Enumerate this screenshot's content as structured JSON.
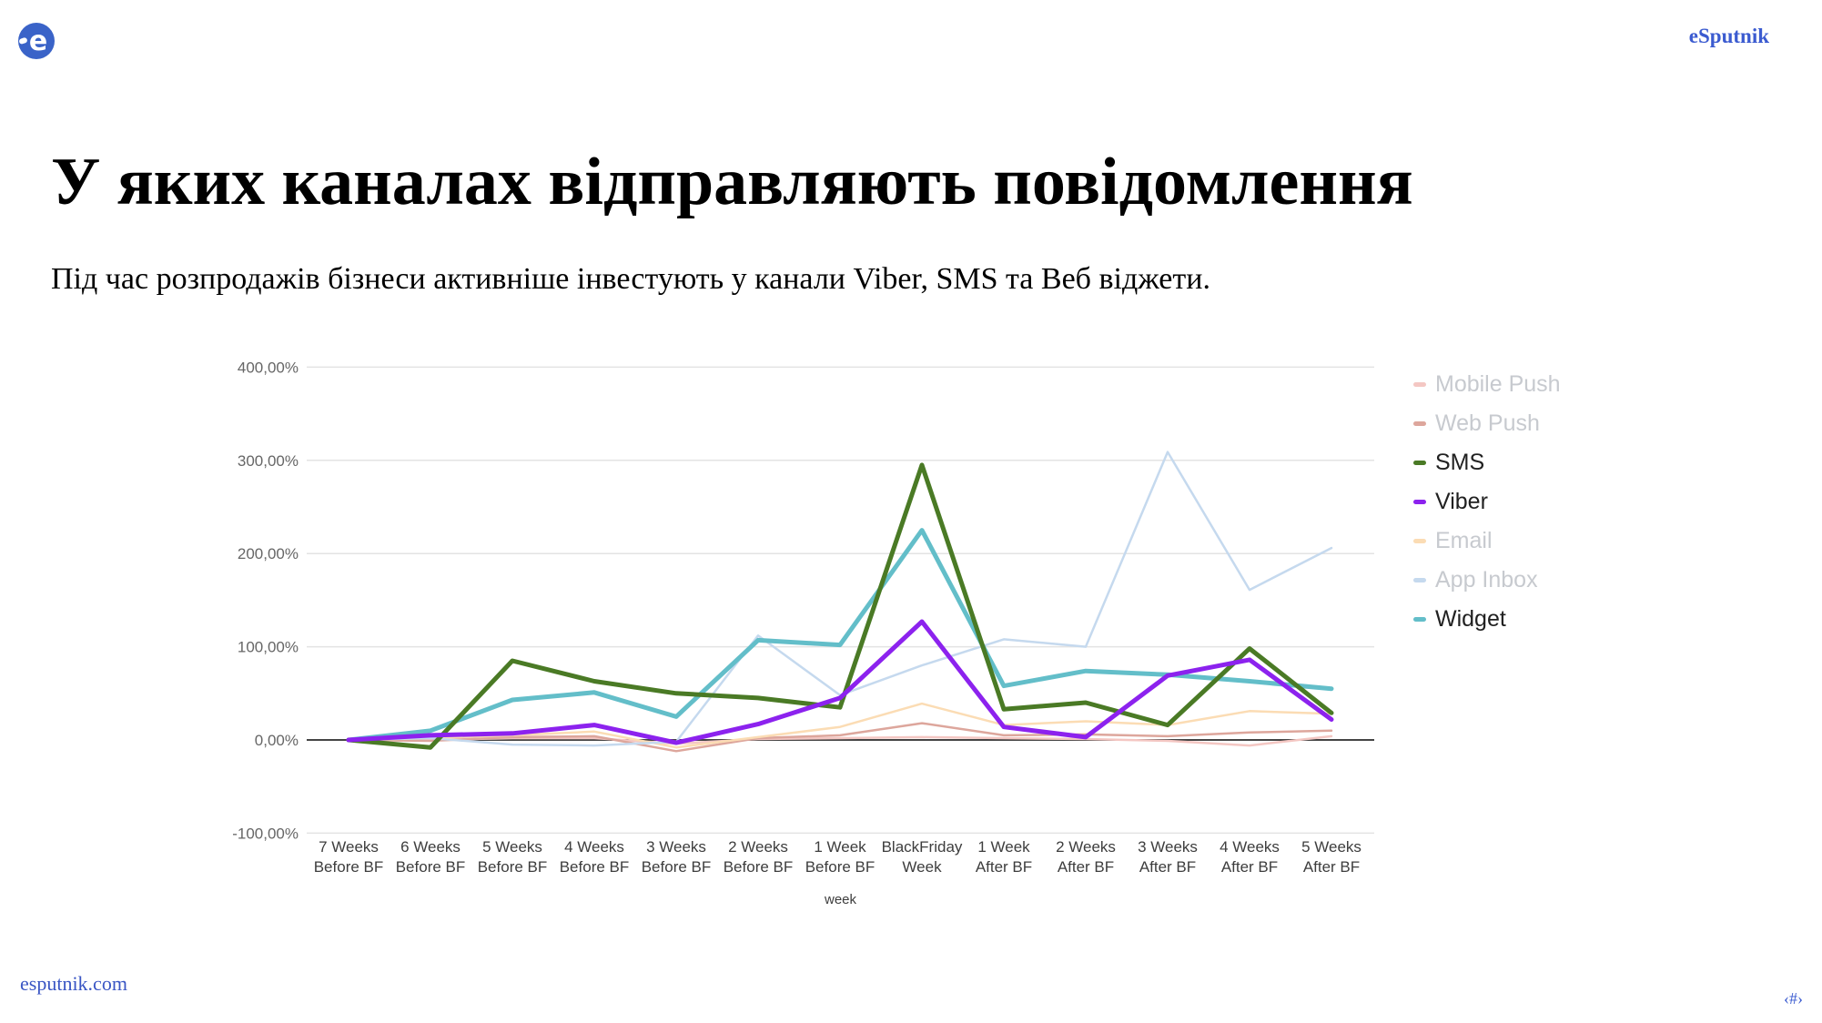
{
  "header": {
    "brand": "eSputnik",
    "brand_color": "#3b5bd0",
    "logo_letter": "e",
    "logo_color": "#3a63c8"
  },
  "slide": {
    "title": "У яких каналах відправляють повідомлення",
    "subtitle": "Під час розпродажів бізнеси активніше інвестують у канали Viber, SMS та Веб віджети."
  },
  "footer": {
    "link": "esputnik.com",
    "link_color": "#3a56c4",
    "page_number": "‹#›"
  },
  "chart_data": {
    "type": "line",
    "title": "",
    "xlabel": "week",
    "ylabel": "",
    "unit": "%",
    "ylim": [
      -100,
      400
    ],
    "grid": "horizontal",
    "legend_position": "right",
    "zero_line_color": "#454545",
    "gridline_color": "#e3e3e3",
    "axis_text_color": "#666666",
    "x_text_color": "#3d3d3d",
    "legend_active_color": "#212121",
    "legend_faded_color": "#c7cacf",
    "yticks": [
      "400,00%",
      "300,00%",
      "200,00%",
      "100,00%",
      "0,00%",
      "-100,00%"
    ],
    "ytick_values": [
      400,
      300,
      200,
      100,
      0,
      -100
    ],
    "categories": [
      {
        "line1": "7 Weeks",
        "line2": "Before BF"
      },
      {
        "line1": "6 Weeks",
        "line2": "Before BF"
      },
      {
        "line1": "5 Weeks",
        "line2": "Before BF"
      },
      {
        "line1": "4 Weeks",
        "line2": "Before BF"
      },
      {
        "line1": "3 Weeks",
        "line2": "Before BF"
      },
      {
        "line1": "2 Weeks",
        "line2": "Before BF"
      },
      {
        "line1": "1 Week",
        "line2": "Before BF"
      },
      {
        "line1": "BlackFriday",
        "line2": "Week"
      },
      {
        "line1": "1 Week",
        "line2": "After BF"
      },
      {
        "line1": "2 Weeks",
        "line2": "After BF"
      },
      {
        "line1": "3 Weeks",
        "line2": "After BF"
      },
      {
        "line1": "4 Weeks",
        "line2": "After BF"
      },
      {
        "line1": "5 Weeks",
        "line2": "After BF"
      }
    ],
    "series": [
      {
        "name": "Mobile Push",
        "color": "#f4c7c3",
        "faded": true,
        "z": 1,
        "values": [
          0,
          0,
          2,
          2,
          -4,
          1,
          2,
          3,
          2,
          1,
          -1,
          -6,
          4
        ]
      },
      {
        "name": "Web Push",
        "color": "#dda69c",
        "faded": true,
        "z": 2,
        "values": [
          0,
          -1,
          3,
          4,
          -12,
          2,
          5,
          18,
          5,
          6,
          4,
          8,
          10
        ]
      },
      {
        "name": "SMS",
        "color": "#4a7a25",
        "faded": false,
        "z": 6,
        "values": [
          0,
          -8,
          85,
          63,
          50,
          45,
          35,
          295,
          33,
          40,
          16,
          98,
          29
        ]
      },
      {
        "name": "Viber",
        "color": "#8c22ee",
        "faded": false,
        "z": 7,
        "values": [
          0,
          5,
          7,
          16,
          -3,
          17,
          45,
          127,
          14,
          3,
          69,
          86,
          22
        ]
      },
      {
        "name": "Email",
        "color": "#fbdcb4",
        "faded": true,
        "z": 3,
        "values": [
          0,
          2,
          5,
          9,
          -8,
          3,
          14,
          39,
          16,
          20,
          16,
          31,
          28
        ]
      },
      {
        "name": "App Inbox",
        "color": "#c5d9ee",
        "faded": true,
        "z": 4,
        "values": [
          0,
          2,
          -5,
          -6,
          -2,
          112,
          48,
          80,
          108,
          100,
          309,
          161,
          206
        ]
      },
      {
        "name": "Widget",
        "color": "#63bec9",
        "faded": false,
        "z": 5,
        "values": [
          0,
          10,
          43,
          51,
          25,
          107,
          102,
          225,
          58,
          74,
          70,
          63,
          55
        ]
      }
    ]
  }
}
